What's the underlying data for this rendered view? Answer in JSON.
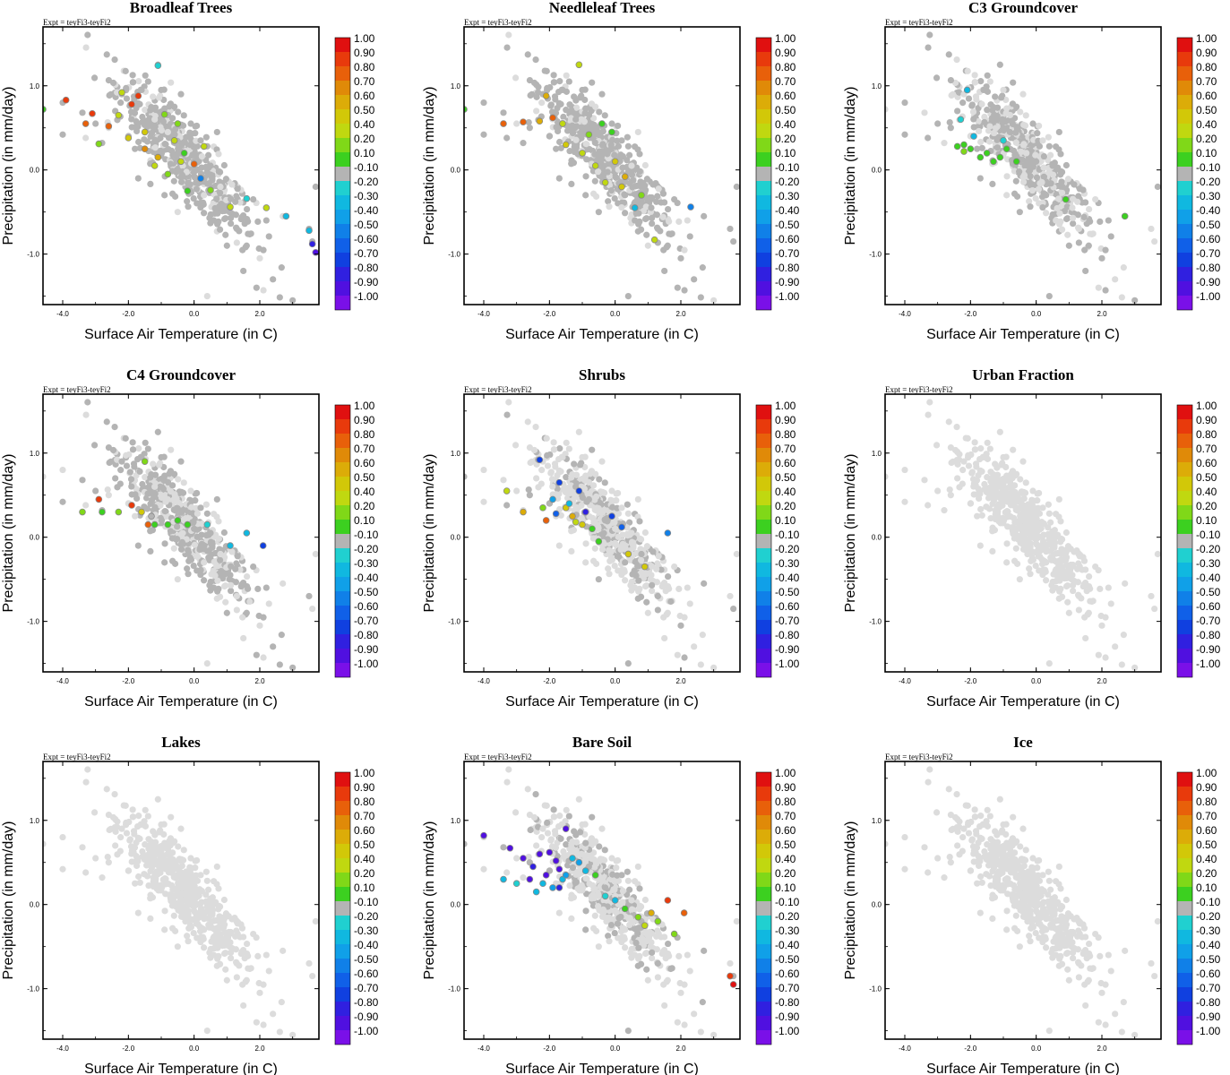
{
  "chart_data": {
    "type": "scatter",
    "experiment_label": "Expt = teyFi3-teyFi2",
    "xlabel": "Surface Air Temperature (in C)",
    "ylabel": "Precipitation (in mm/day)",
    "xlim": [
      -4.6,
      3.8
    ],
    "ylim": [
      -1.6,
      1.7
    ],
    "x_ticks": [
      -4.0,
      -2.0,
      0.0,
      2.0
    ],
    "x_tick_labels": [
      "-4.0",
      "-2.0",
      "0.0",
      "2.0"
    ],
    "y_ticks": [
      1.0,
      0.0,
      -1.0
    ],
    "y_tick_labels": [
      "1.0",
      "0.0",
      "-1.0"
    ],
    "colorbar": {
      "labels": [
        "1.00",
        "0.90",
        "0.80",
        "0.70",
        "0.60",
        "0.50",
        "0.40",
        "0.20",
        "0.10",
        "-0.10",
        "-0.20",
        "-0.30",
        "-0.40",
        "-0.50",
        "-0.60",
        "-0.70",
        "-0.80",
        "-0.90",
        "-1.00"
      ],
      "colors": [
        "#e01010",
        "#e83a0c",
        "#e8600a",
        "#e08a08",
        "#dcac08",
        "#d2c808",
        "#c0d810",
        "#80d818",
        "#3cd020",
        "#b4b4b4",
        "#20d0d0",
        "#10b8e0",
        "#10a0e8",
        "#1080e8",
        "#1060e8",
        "#1040e0",
        "#3020e0",
        "#5010e0",
        "#7a10e8"
      ]
    },
    "color_notes": "Colours map to the colorbar values (correlation coefficient). Light grey = no data / background points, grey = near-zero (-0.10..0.10) correlation.",
    "background_cloud": [
      [
        -4.6,
        0.72
      ],
      [
        -4.0,
        0.8
      ],
      [
        -4.0,
        0.42
      ],
      [
        -3.4,
        0.68
      ],
      [
        -3.3,
        0.38
      ],
      [
        -3.0,
        0.55
      ],
      [
        -2.8,
        0.32
      ],
      [
        -2.6,
        0.5
      ],
      [
        -2.4,
        0.7
      ],
      [
        -2.2,
        0.9
      ],
      [
        -2.0,
        0.4
      ],
      [
        -1.8,
        0.25
      ],
      [
        -1.6,
        0.95
      ],
      [
        -1.4,
        1.05
      ],
      [
        -1.2,
        0.6
      ],
      [
        -1.1,
        1.25
      ],
      [
        -1.0,
        0.95
      ],
      [
        -0.8,
        0.45
      ],
      [
        -0.6,
        0.75
      ],
      [
        -0.4,
        0.9
      ],
      [
        -0.3,
        0.2
      ],
      [
        -0.1,
        0.55
      ],
      [
        0.0,
        0.1
      ],
      [
        0.2,
        0.35
      ],
      [
        0.3,
        -0.3
      ],
      [
        0.5,
        0.05
      ],
      [
        0.6,
        -0.6
      ],
      [
        0.8,
        -0.2
      ],
      [
        1.0,
        -0.9
      ],
      [
        1.1,
        -0.45
      ],
      [
        1.3,
        -0.7
      ],
      [
        1.5,
        -1.2
      ],
      [
        1.6,
        -0.9
      ],
      [
        1.8,
        -0.35
      ],
      [
        2.0,
        -1.05
      ],
      [
        2.2,
        -0.6
      ],
      [
        2.4,
        -1.3
      ],
      [
        2.7,
        -0.55
      ],
      [
        3.0,
        -1.55
      ],
      [
        3.5,
        -0.7
      ],
      [
        3.6,
        -0.85
      ],
      [
        3.7,
        -0.2
      ],
      [
        -1.7,
        -0.1
      ],
      [
        -0.9,
        -0.3
      ],
      [
        -0.5,
        -0.5
      ],
      [
        0.7,
        0.45
      ],
      [
        1.9,
        -1.4
      ],
      [
        0.4,
        -1.5
      ]
    ],
    "panels": [
      {
        "title": "Broadleaf Trees",
        "series": [
          {
            "name": "correlation",
            "x": [
              -4.6,
              -3.9,
              -3.3,
              -3.1,
              -2.9,
              -2.6,
              -2.3,
              -2.2,
              -1.9,
              -1.7,
              -1.5,
              -1.1,
              -0.9,
              -0.6,
              -0.3,
              0.0,
              0.5,
              1.1,
              1.6,
              2.2,
              2.8,
              3.5,
              3.6,
              3.7,
              -1.1,
              -1.5,
              -2.0,
              -0.8,
              -0.2,
              0.3,
              -0.5,
              -1.2,
              -0.4,
              0.2
            ],
            "y": [
              0.72,
              0.83,
              0.55,
              0.67,
              0.31,
              0.52,
              0.65,
              0.92,
              0.78,
              0.88,
              0.45,
              1.24,
              0.66,
              0.35,
              0.2,
              0.07,
              -0.24,
              -0.44,
              -0.34,
              -0.45,
              -0.55,
              -0.72,
              -0.88,
              -0.98,
              0.15,
              0.25,
              0.38,
              -0.05,
              -0.25,
              0.28,
              0.55,
              0.05,
              0.1,
              -0.1
            ],
            "values": [
              0.1,
              0.9,
              0.8,
              0.9,
              0.2,
              0.8,
              0.3,
              0.4,
              0.9,
              0.9,
              0.5,
              -0.2,
              0.2,
              0.4,
              0.1,
              0.8,
              0.2,
              0.3,
              -0.2,
              0.3,
              -0.3,
              -0.3,
              -0.8,
              -0.9,
              0.6,
              0.7,
              0.5,
              0.2,
              0.1,
              0.4,
              0.2,
              0.4,
              0.3,
              -0.5
            ]
          }
        ]
      },
      {
        "title": "Needleleaf Trees",
        "series": [
          {
            "name": "correlation",
            "x": [
              -4.6,
              -3.4,
              -2.8,
              -2.3,
              -2.1,
              -1.9,
              -1.6,
              -1.1,
              -0.8,
              -0.4,
              -0.1,
              0.0,
              0.3,
              0.6,
              1.2,
              2.3,
              -1.5,
              -1.0,
              -0.6,
              0.2,
              0.8,
              -0.3
            ],
            "y": [
              0.72,
              0.55,
              0.57,
              0.58,
              0.88,
              0.62,
              0.55,
              1.25,
              0.42,
              0.55,
              0.45,
              0.1,
              -0.08,
              -0.45,
              -0.83,
              -0.44,
              0.3,
              0.2,
              0.05,
              -0.2,
              -0.3,
              -0.15
            ],
            "values": [
              0.1,
              0.8,
              0.8,
              0.6,
              0.6,
              0.8,
              0.4,
              0.3,
              0.2,
              0.1,
              0.1,
              0.5,
              0.6,
              -0.3,
              0.4,
              -0.5,
              0.5,
              0.4,
              0.3,
              0.5,
              0.2,
              0.4
            ]
          }
        ]
      },
      {
        "title": "C3 Groundcover",
        "series": [
          {
            "name": "correlation",
            "x": [
              -2.1,
              -2.3,
              -2.2,
              -2.0,
              -1.9,
              -1.7,
              -1.5,
              -1.3,
              -1.1,
              -1.0,
              -0.9,
              -0.6,
              0.9,
              2.7,
              -2.2,
              -2.4
            ],
            "y": [
              0.95,
              0.6,
              0.3,
              0.25,
              0.4,
              0.15,
              0.2,
              0.1,
              0.15,
              0.35,
              0.25,
              0.1,
              -0.35,
              -0.55,
              0.22,
              0.28
            ],
            "values": [
              -0.3,
              -0.2,
              0.1,
              0.1,
              -0.3,
              0.1,
              0.1,
              0.1,
              0.1,
              -0.2,
              0.1,
              0.1,
              0.1,
              0.1,
              0.2,
              0.1
            ]
          }
        ]
      },
      {
        "title": "C4 Groundcover",
        "series": [
          {
            "name": "correlation",
            "x": [
              -3.4,
              -2.9,
              -2.8,
              -2.3,
              -1.9,
              -1.6,
              -1.5,
              -1.4,
              -1.3,
              -1.2,
              -0.8,
              -0.5,
              -0.2,
              0.4,
              1.1,
              1.6,
              2.1
            ],
            "y": [
              0.3,
              0.45,
              0.3,
              0.3,
              0.38,
              0.3,
              0.9,
              0.15,
              0.25,
              0.15,
              0.15,
              0.2,
              0.15,
              0.15,
              -0.1,
              0.05,
              -0.1
            ],
            "values": [
              0.2,
              0.9,
              0.1,
              0.2,
              0.9,
              0.5,
              0.2,
              0.8,
              -0.1,
              0.1,
              0.1,
              0.1,
              0.1,
              -0.2,
              -0.3,
              -0.3,
              -0.7
            ]
          }
        ]
      },
      {
        "title": "Shrubs",
        "series": [
          {
            "name": "correlation",
            "x": [
              -3.3,
              -2.8,
              -2.3,
              -2.1,
              -1.9,
              -1.7,
              -1.5,
              -1.3,
              -1.1,
              -1.0,
              -0.7,
              -0.5,
              -0.1,
              0.4,
              0.9,
              1.6,
              -2.2,
              -1.8,
              -1.4,
              -1.2,
              -0.9,
              0.2
            ],
            "y": [
              0.55,
              0.3,
              0.92,
              0.2,
              0.45,
              0.65,
              0.35,
              0.25,
              0.55,
              0.15,
              0.1,
              -0.05,
              0.25,
              -0.2,
              -0.35,
              0.05,
              0.35,
              0.28,
              0.4,
              0.18,
              0.3,
              0.12
            ],
            "values": [
              0.3,
              0.6,
              -0.7,
              0.8,
              -0.4,
              -0.7,
              0.5,
              0.6,
              -0.7,
              0.5,
              0.1,
              0.1,
              -0.7,
              0.5,
              0.5,
              -0.5,
              0.2,
              -0.6,
              -0.3,
              0.4,
              -0.8,
              -0.6
            ]
          }
        ]
      },
      {
        "title": "Urban Fraction",
        "series": []
      },
      {
        "title": "Lakes",
        "series": []
      },
      {
        "title": "Bare Soil",
        "series": [
          {
            "name": "correlation",
            "x": [
              -4.0,
              -3.4,
              -3.2,
              -3.0,
              -2.8,
              -2.5,
              -2.3,
              -2.2,
              -2.1,
              -2.0,
              -1.9,
              -1.8,
              -1.7,
              -1.6,
              -1.5,
              -1.3,
              -1.1,
              -0.9,
              -0.6,
              -0.3,
              0.0,
              0.3,
              0.7,
              0.9,
              1.1,
              1.3,
              1.6,
              1.8,
              2.1,
              3.5,
              3.6,
              -2.6,
              -2.4,
              -1.7,
              -1.5
            ],
            "y": [
              0.82,
              0.3,
              0.67,
              0.25,
              0.55,
              0.45,
              0.6,
              0.25,
              0.35,
              0.62,
              0.2,
              0.52,
              0.42,
              0.3,
              0.9,
              0.55,
              0.5,
              0.4,
              0.35,
              0.1,
              0.05,
              -0.05,
              -0.15,
              -0.25,
              -0.1,
              -0.2,
              0.05,
              -0.35,
              -0.1,
              -0.85,
              -0.95,
              0.3,
              0.15,
              0.2,
              0.35
            ],
            "values": [
              -0.9,
              -0.3,
              -0.9,
              -0.2,
              -0.9,
              -0.8,
              -0.9,
              -0.3,
              -0.9,
              -0.9,
              -0.4,
              -0.9,
              -0.9,
              -0.3,
              -0.9,
              -0.3,
              -0.4,
              -0.3,
              0.1,
              -0.2,
              -0.3,
              0.1,
              0.2,
              0.4,
              0.6,
              0.2,
              0.9,
              0.2,
              0.8,
              0.9,
              1.0,
              -0.9,
              -0.3,
              -0.8,
              -0.4
            ]
          }
        ]
      },
      {
        "title": "Ice",
        "series": []
      }
    ]
  }
}
